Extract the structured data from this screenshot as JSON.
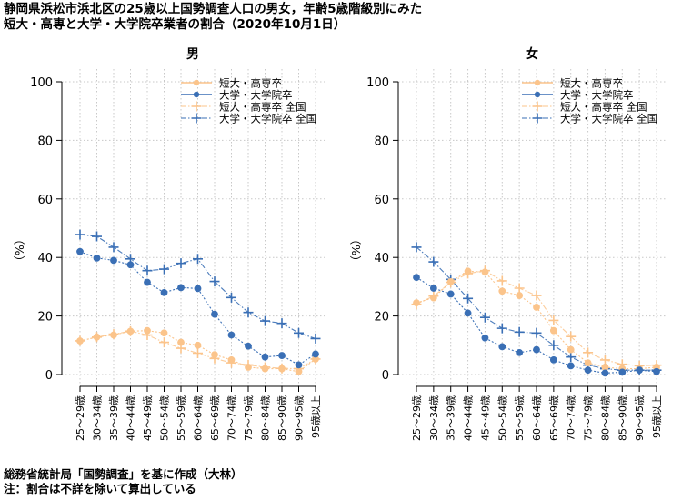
{
  "title": {
    "line1": "静岡県浜松市浜北区の25歳以上国勢調査人口の男女，年齢5歳階級別にみた",
    "line2": "短大・高専と大学・大学院卒業者の割合（2020年10月1日）"
  },
  "footer": {
    "source": "総務省統計局「国勢調査」を基に作成（大林）",
    "note": "注：割合は不詳を除いて算出している"
  },
  "colors": {
    "tanki": "#fbc48b",
    "daigaku": "#3a6fb5",
    "grid": "#c8c8c8"
  },
  "chart_data": [
    {
      "type": "line",
      "panel_title": "男",
      "ylabel": "（%）",
      "ylim": [
        0,
        100
      ],
      "yticks": [
        0,
        20,
        40,
        60,
        80,
        100
      ],
      "grid": true,
      "legend_position": "top-right",
      "categories": [
        "25～29歳",
        "30～34歳",
        "35～39歳",
        "40～44歳",
        "45～49歳",
        "50～54歳",
        "55～59歳",
        "60～64歳",
        "65～69歳",
        "70～74歳",
        "75～79歳",
        "80～84歳",
        "85～90歳",
        "90～95歳",
        "95歳以上"
      ],
      "series": [
        {
          "name": "短大・高専卒",
          "style": "local",
          "color_key": "tanki",
          "values": [
            11.5,
            12.8,
            13.5,
            14.8,
            15.0,
            14.2,
            11.0,
            10.0,
            6.8,
            5.0,
            2.5,
            2.0,
            2.0,
            1.0,
            5.3
          ]
        },
        {
          "name": "大学・大学院卒",
          "style": "local",
          "color_key": "daigaku",
          "values": [
            42.0,
            39.8,
            39.0,
            37.5,
            31.5,
            28.0,
            29.7,
            29.4,
            20.6,
            13.5,
            9.7,
            6.0,
            6.5,
            3.3,
            7.0
          ]
        },
        {
          "name": "短大・高専卒 全国",
          "style": "national",
          "color_key": "tanki",
          "values": [
            11.5,
            12.8,
            13.8,
            14.8,
            13.5,
            11.0,
            9.0,
            7.3,
            5.5,
            4.0,
            3.3,
            2.5,
            2.1,
            2.0,
            5.3
          ]
        },
        {
          "name": "大学・大学院卒 全国",
          "style": "national",
          "color_key": "daigaku",
          "values": [
            47.8,
            47.2,
            43.5,
            39.5,
            35.5,
            36.0,
            38.0,
            39.5,
            31.8,
            26.3,
            21.2,
            18.3,
            17.5,
            14.2,
            12.3
          ]
        }
      ]
    },
    {
      "type": "line",
      "panel_title": "女",
      "ylabel": "（%）",
      "ylim": [
        0,
        100
      ],
      "yticks": [
        0,
        20,
        40,
        60,
        80,
        100
      ],
      "grid": true,
      "legend_position": "top-right",
      "categories": [
        "25～29歳",
        "30～34歳",
        "35～39歳",
        "40～44歳",
        "45～49歳",
        "50～54歳",
        "55～59歳",
        "60～64歳",
        "65～69歳",
        "70～74歳",
        "75～79歳",
        "80～84歳",
        "85～90歳",
        "90～95歳",
        "95歳以上"
      ],
      "series": [
        {
          "name": "短大・高専卒",
          "style": "local",
          "color_key": "tanki",
          "values": [
            24.5,
            26.2,
            31.7,
            35.3,
            35.0,
            28.5,
            27.0,
            23.0,
            15.0,
            8.5,
            4.0,
            2.5,
            2.0,
            2.0,
            2.5
          ]
        },
        {
          "name": "大学・大学院卒",
          "style": "local",
          "color_key": "daigaku",
          "values": [
            33.2,
            29.5,
            27.5,
            21.0,
            12.5,
            9.5,
            7.5,
            8.5,
            5.0,
            3.0,
            1.5,
            0.5,
            0.8,
            1.5,
            1.0
          ]
        },
        {
          "name": "短大・高専卒 全国",
          "style": "national",
          "color_key": "tanki",
          "values": [
            24.0,
            26.8,
            31.5,
            34.5,
            35.5,
            32.0,
            29.5,
            27.0,
            18.5,
            13.0,
            7.5,
            5.0,
            3.5,
            3.0,
            3.2
          ]
        },
        {
          "name": "大学・大学院卒 全国",
          "style": "national",
          "color_key": "daigaku",
          "values": [
            43.5,
            38.5,
            32.5,
            26.0,
            19.5,
            15.8,
            14.5,
            14.2,
            10.0,
            6.0,
            3.2,
            2.0,
            1.5,
            1.5,
            1.5
          ]
        }
      ]
    }
  ]
}
